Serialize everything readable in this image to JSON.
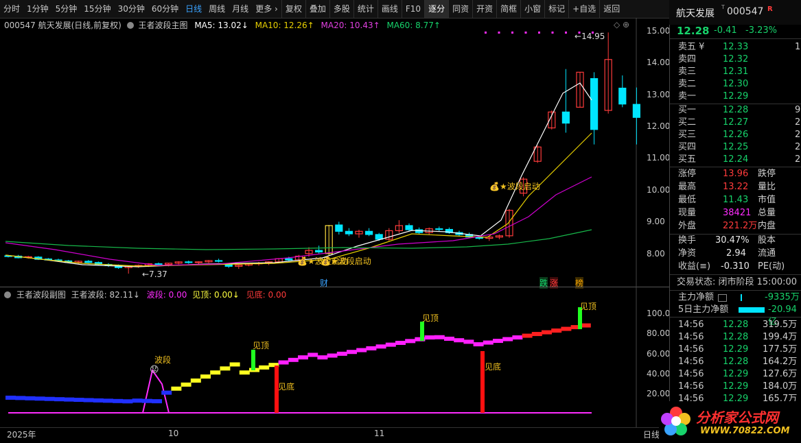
{
  "toolbar": {
    "items": [
      "分时",
      "1分钟",
      "5分钟",
      "15分钟",
      "30分钟",
      "60分钟",
      "日线",
      "周线",
      "月线",
      "更多 ›",
      "复权",
      "叠加",
      "多股",
      "统计",
      "画线",
      "F10",
      "逐分",
      "同资",
      "开资",
      "简框",
      "小窗",
      "标记",
      "+自选",
      "返回"
    ]
  },
  "main": {
    "legend_code": "000547 航天发展(日线,前复权)",
    "indicator_name": "王者波段主图",
    "ma5": "MA5: 13.02↓",
    "ma10": "MA10: 12.26↑",
    "ma20": "MA20: 10.43↑",
    "ma60": "MA60: 8.77↑",
    "yaxis": [
      "15.00",
      "14.00",
      "13.00",
      "12.00",
      "11.00",
      "10.00",
      "9.00",
      "8.00"
    ],
    "high_label": "14.95",
    "low_label": "←7.37",
    "signal1": "波段启动",
    "signal2": "波段启动",
    "signal3": "波段启动",
    "badge_cai": "财",
    "badge_die": "跌",
    "badge_zhang": "涨",
    "badge_bang": "榜"
  },
  "sub": {
    "title": "王者波段副图",
    "value": "王者波段: 82.11↓",
    "bodi": "波段: 0.00",
    "jianding": "见顶: 0.00↓",
    "jiandi": "见底: 0.00",
    "yaxis": [
      "100.0",
      "80.00",
      "60.00",
      "40.00",
      "20.00"
    ],
    "label_boduan": "波段",
    "label_jd1": "见顶",
    "label_jd2": "见顶",
    "label_jd3": "见顶",
    "label_jdi1": "见底",
    "label_jdi2": "见底"
  },
  "xaxis": {
    "year": "2025年",
    "oct": "10",
    "nov": "11",
    "right": "日线"
  },
  "quote": {
    "name": "航天发展",
    "code": "000547",
    "tag": "R",
    "price": "12.28",
    "change": "-0.41",
    "pct": "-3.23%",
    "asks": [
      {
        "label": "卖五 ¥",
        "price": "12.33",
        "vol": "1"
      },
      {
        "label": "卖四",
        "price": "12.32",
        "vol": ""
      },
      {
        "label": "卖三",
        "price": "12.31",
        "vol": ""
      },
      {
        "label": "卖二",
        "price": "12.30",
        "vol": ""
      },
      {
        "label": "卖一",
        "price": "12.29",
        "vol": ""
      }
    ],
    "bids": [
      {
        "label": "买一",
        "price": "12.28",
        "vol": "9"
      },
      {
        "label": "买二",
        "price": "12.27",
        "vol": "2"
      },
      {
        "label": "买三",
        "price": "12.26",
        "vol": "2"
      },
      {
        "label": "买四",
        "price": "12.25",
        "vol": "2"
      },
      {
        "label": "买五",
        "price": "12.24",
        "vol": "2"
      }
    ],
    "stats": [
      {
        "l1": "涨停",
        "v1": "13.96",
        "c1": "red",
        "l2": "跌停"
      },
      {
        "l1": "最高",
        "v1": "13.22",
        "c1": "red",
        "l2": "量比"
      },
      {
        "l1": "最低",
        "v1": "11.43",
        "c1": "green",
        "l2": "市值"
      },
      {
        "l1": "现量",
        "v1": "38421",
        "c1": "mag",
        "l2": "总量"
      },
      {
        "l1": "外盘",
        "v1": "221.2万",
        "c1": "red",
        "l2": "内盘"
      }
    ],
    "stats2": [
      {
        "l1": "换手",
        "v1": "30.47%",
        "l2": "股本"
      },
      {
        "l1": "净资",
        "v1": "2.94",
        "l2": "流通"
      },
      {
        "l1": "收益(≡)",
        "v1": "-0.310",
        "l2": "PE(动)"
      }
    ],
    "trade_state": "交易状态: 闭市阶段 15:00:00",
    "main_flow_label": "主力净额",
    "main_flow_value": "-9335万",
    "five_flow_label": "5日主力净额",
    "five_flow_value": "-20.94亿",
    "ticks": [
      {
        "t": "14:56",
        "p": "12.28",
        "v": "319.5万"
      },
      {
        "t": "14:56",
        "p": "12.28",
        "v": "199.4万"
      },
      {
        "t": "14:56",
        "p": "12.29",
        "v": "177.5万"
      },
      {
        "t": "14:56",
        "p": "12.28",
        "v": "164.2万"
      },
      {
        "t": "14:56",
        "p": "12.29",
        "v": "127.6万"
      },
      {
        "t": "14:56",
        "p": "12.29",
        "v": "184.0万"
      },
      {
        "t": "14:56",
        "p": "12.29",
        "v": "165.7万"
      }
    ]
  },
  "watermark": {
    "title": "分析家公式网",
    "url": "WWW.70822.COM"
  },
  "colors": {
    "up": "#ff3b3b",
    "down": "#00e5ff",
    "ma5": "#ffffff",
    "ma10": "#e8d000",
    "ma20": "#d000d0",
    "ma60": "#17b84a"
  }
}
